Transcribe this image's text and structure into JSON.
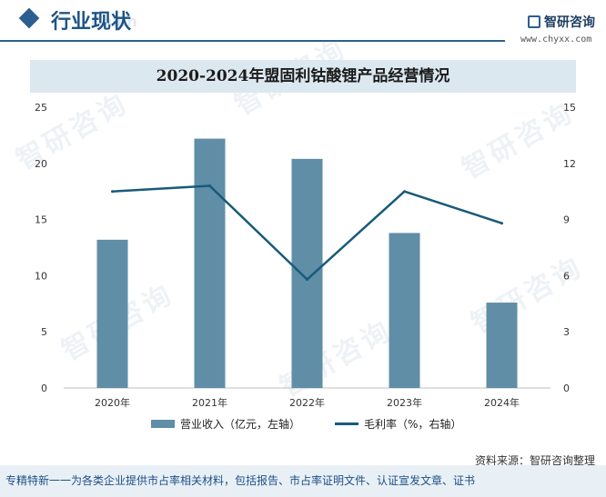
{
  "header": {
    "title": "行业现状",
    "ghost_text": "Chain"
  },
  "brand": {
    "name": "智研咨询",
    "url": "www.chyxx.com"
  },
  "watermark_text": "智研咨询",
  "chart_data": {
    "type": "bar",
    "title": "2020-2024年盟固利钴酸锂产品经营情况",
    "categories": [
      "2020年",
      "2021年",
      "2022年",
      "2023年",
      "2024年"
    ],
    "series": [
      {
        "name": "营业收入（亿元，左轴）",
        "type": "bar",
        "axis": "left",
        "color": "#5f8ea6",
        "values": [
          13.2,
          22.2,
          20.4,
          13.8,
          7.6
        ]
      },
      {
        "name": "毛利率（%，右轴）",
        "type": "line",
        "axis": "right",
        "color": "#175b7a",
        "values": [
          10.5,
          10.8,
          5.8,
          10.5,
          8.8
        ]
      }
    ],
    "left_axis": {
      "min": 0,
      "max": 25,
      "ticks": [
        "0",
        "5",
        "10",
        "15",
        "20",
        "25"
      ]
    },
    "right_axis": {
      "min": 0,
      "max": 15,
      "ticks": [
        "0",
        "3",
        "6",
        "9",
        "12",
        "15"
      ]
    },
    "grid": false,
    "legend_position": "bottom"
  },
  "source": "资料来源：智研咨询整理",
  "footer": "专精特新一一为各类企业提供市占率相关材料，包括报告、市占率证明文件、认证宣发文章、证书"
}
